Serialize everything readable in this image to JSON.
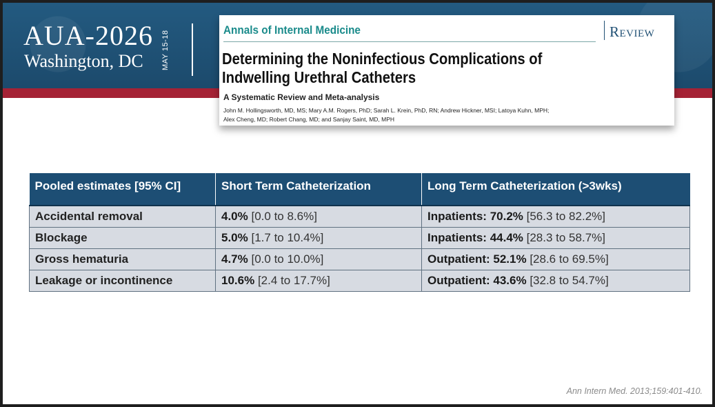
{
  "conference": {
    "title": "AUA-2026",
    "city": "Washington, DC",
    "dates": "MAY 15-18"
  },
  "article": {
    "journal": "Annals of Internal Medicine",
    "tag": "Review",
    "title": "Determining the Noninfectious Complications of Indwelling Urethral Catheters",
    "subtitle": "A Systematic Review and Meta-analysis",
    "authors_line1": "John M. Hollingsworth, MD, MS; Mary A.M. Rogers, PhD; Sarah L. Krein, PhD, RN; Andrew Hickner, MSI; Latoya Kuhn, MPH;",
    "authors_line2": "Alex Cheng, MD; Robert Chang, MD; and Sanjay Saint, MD, MPH"
  },
  "table": {
    "headers": [
      "Pooled estimates [95% CI]",
      "Short Term Catheterization",
      "Long Term Catheterization (>3wks)"
    ],
    "rows": [
      {
        "label": "Accidental removal",
        "short_value": "4.0%",
        "short_ci": "[0.0 to 8.6%]",
        "long_prefix": "Inpatients:",
        "long_value": "70.2%",
        "long_ci": "[56.3 to 82.2%]"
      },
      {
        "label": "Blockage",
        "short_value": "5.0%",
        "short_ci": "[1.7 to 10.4%]",
        "long_prefix": "Inpatients:",
        "long_value": "44.4%",
        "long_ci": "[28.3 to 58.7%]"
      },
      {
        "label": "Gross hematuria",
        "short_value": "4.7%",
        "short_ci": "[0.0 to 10.0%]",
        "long_prefix": "Outpatient:",
        "long_value": "52.1%",
        "long_ci": "[28.6 to 69.5%]"
      },
      {
        "label": "Leakage or incontinence",
        "short_value": "10.6%",
        "short_ci": "[2.4 to 17.7%]",
        "long_prefix": "Outpatient:",
        "long_value": "43.6%",
        "long_ci": "[32.8 to 54.7%]"
      }
    ]
  },
  "citation": "Ann Intern Med. 2013;159:401-410.",
  "colors": {
    "banner": "#1f4f73",
    "accent_red": "#a52235",
    "journal_teal": "#1a8b8b",
    "table_header": "#1d4e74",
    "table_cell": "#d7dbe2"
  }
}
